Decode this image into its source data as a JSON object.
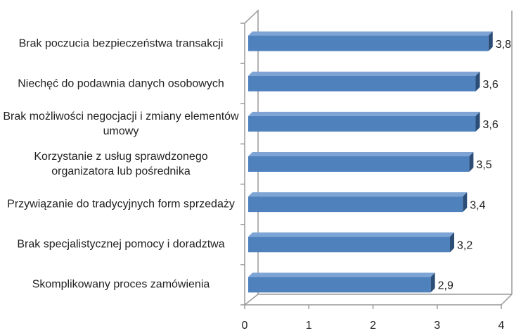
{
  "chart_data": {
    "type": "bar3d_horizontal",
    "categories": [
      "Brak poczucia bezpieczeństwa transakcji",
      "Niechęć do podawnia danych osobowych",
      "Brak możliwości negocjacji i zmiany elementów umowy",
      "Korzystanie z usług sprawdzonego organizatora lub pośrednika",
      "Przywiązanie do tradycyjnych form sprzedaży",
      "Brak specjalistycznej pomocy i doradztwa",
      "Skomplikowany proces zamówienia"
    ],
    "values": [
      3.8,
      3.6,
      3.6,
      3.5,
      3.4,
      3.2,
      2.9
    ],
    "value_labels": [
      "3,8",
      "3,6",
      "3,6",
      "3,5",
      "3,4",
      "3,2",
      "2,9"
    ],
    "color": "#4f81bd",
    "xlim": [
      0,
      4
    ],
    "xticks": [
      0,
      1,
      2,
      3,
      4
    ],
    "grid": false
  }
}
